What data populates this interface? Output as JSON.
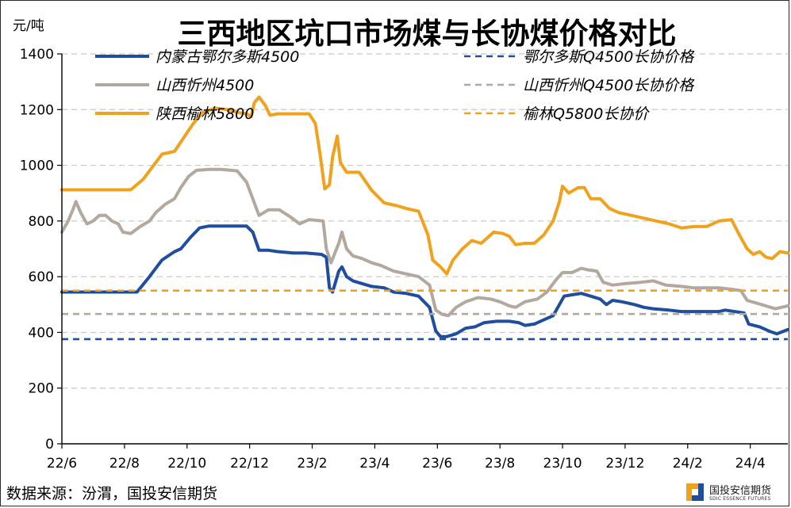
{
  "chart_data": {
    "type": "line",
    "title": "三西地区坑口市场煤与长协煤价格对比",
    "ylabel": "元/吨",
    "ylim": [
      0,
      1400
    ],
    "yticks": [
      0,
      200,
      400,
      600,
      800,
      1000,
      1200,
      1400
    ],
    "xlim": [
      0,
      23.2
    ],
    "xticks": [
      {
        "label": "22/6",
        "value": 0
      },
      {
        "label": "22/8",
        "value": 2
      },
      {
        "label": "22/10",
        "value": 4
      },
      {
        "label": "22/12",
        "value": 6
      },
      {
        "label": "23/2",
        "value": 8
      },
      {
        "label": "23/4",
        "value": 10
      },
      {
        "label": "23/6",
        "value": 12
      },
      {
        "label": "23/8",
        "value": 14
      },
      {
        "label": "23/10",
        "value": 16
      },
      {
        "label": "23/12",
        "value": 18
      },
      {
        "label": "24/2",
        "value": 20
      },
      {
        "label": "24/4",
        "value": 22
      }
    ],
    "grid": "horizontal dashed",
    "legend_position": "top",
    "series": [
      {
        "name": "内蒙古鄂尔多斯4500",
        "color": "#1f4e9c",
        "style": "solid",
        "points": [
          [
            0,
            545
          ],
          [
            1.5,
            545
          ],
          [
            2.4,
            545
          ],
          [
            2.8,
            600
          ],
          [
            3.2,
            660
          ],
          [
            3.6,
            690
          ],
          [
            3.8,
            700
          ],
          [
            4.1,
            740
          ],
          [
            4.4,
            775
          ],
          [
            4.7,
            782
          ],
          [
            5.0,
            782
          ],
          [
            5.5,
            782
          ],
          [
            5.9,
            782
          ],
          [
            6.1,
            760
          ],
          [
            6.3,
            695
          ],
          [
            6.6,
            695
          ],
          [
            6.9,
            690
          ],
          [
            7.4,
            685
          ],
          [
            7.8,
            685
          ],
          [
            8.3,
            680
          ],
          [
            8.45,
            670
          ],
          [
            8.55,
            560
          ],
          [
            8.65,
            545
          ],
          [
            8.85,
            620
          ],
          [
            8.95,
            635
          ],
          [
            9.1,
            600
          ],
          [
            9.3,
            585
          ],
          [
            9.6,
            575
          ],
          [
            9.9,
            565
          ],
          [
            10.3,
            560
          ],
          [
            10.6,
            545
          ],
          [
            11.0,
            540
          ],
          [
            11.4,
            530
          ],
          [
            11.75,
            490
          ],
          [
            11.95,
            405
          ],
          [
            12.1,
            385
          ],
          [
            12.3,
            385
          ],
          [
            12.6,
            395
          ],
          [
            12.9,
            415
          ],
          [
            13.2,
            420
          ],
          [
            13.5,
            435
          ],
          [
            13.9,
            440
          ],
          [
            14.3,
            440
          ],
          [
            14.6,
            435
          ],
          [
            14.8,
            425
          ],
          [
            15.1,
            430
          ],
          [
            15.4,
            445
          ],
          [
            15.7,
            460
          ],
          [
            15.95,
            510
          ],
          [
            16.05,
            530
          ],
          [
            16.3,
            535
          ],
          [
            16.6,
            540
          ],
          [
            16.9,
            530
          ],
          [
            17.2,
            520
          ],
          [
            17.4,
            500
          ],
          [
            17.6,
            515
          ],
          [
            17.9,
            510
          ],
          [
            18.3,
            500
          ],
          [
            18.6,
            490
          ],
          [
            18.9,
            485
          ],
          [
            19.4,
            480
          ],
          [
            19.8,
            475
          ],
          [
            20.2,
            475
          ],
          [
            20.6,
            475
          ],
          [
            21.0,
            475
          ],
          [
            21.2,
            480
          ],
          [
            21.5,
            475
          ],
          [
            21.8,
            470
          ],
          [
            21.95,
            430
          ],
          [
            22.3,
            420
          ],
          [
            22.6,
            405
          ],
          [
            22.85,
            395
          ],
          [
            23.2,
            410
          ]
        ]
      },
      {
        "name": "山西忻州4500",
        "color": "#b3a89d",
        "style": "solid",
        "points": [
          [
            0,
            760
          ],
          [
            0.2,
            800
          ],
          [
            0.35,
            840
          ],
          [
            0.45,
            870
          ],
          [
            0.6,
            830
          ],
          [
            0.8,
            790
          ],
          [
            1.0,
            800
          ],
          [
            1.2,
            820
          ],
          [
            1.4,
            820
          ],
          [
            1.6,
            800
          ],
          [
            1.8,
            790
          ],
          [
            1.95,
            760
          ],
          [
            2.2,
            755
          ],
          [
            2.5,
            780
          ],
          [
            2.8,
            800
          ],
          [
            3.0,
            830
          ],
          [
            3.3,
            860
          ],
          [
            3.6,
            880
          ],
          [
            3.8,
            920
          ],
          [
            4.05,
            960
          ],
          [
            4.3,
            982
          ],
          [
            4.7,
            985
          ],
          [
            5.1,
            985
          ],
          [
            5.6,
            980
          ],
          [
            5.9,
            940
          ],
          [
            6.1,
            880
          ],
          [
            6.3,
            820
          ],
          [
            6.6,
            840
          ],
          [
            6.95,
            840
          ],
          [
            7.3,
            815
          ],
          [
            7.6,
            790
          ],
          [
            7.9,
            805
          ],
          [
            8.35,
            800
          ],
          [
            8.45,
            700
          ],
          [
            8.6,
            650
          ],
          [
            8.85,
            720
          ],
          [
            8.95,
            760
          ],
          [
            9.1,
            700
          ],
          [
            9.3,
            675
          ],
          [
            9.6,
            665
          ],
          [
            9.9,
            650
          ],
          [
            10.2,
            640
          ],
          [
            10.6,
            620
          ],
          [
            11.0,
            610
          ],
          [
            11.4,
            600
          ],
          [
            11.75,
            570
          ],
          [
            11.95,
            480
          ],
          [
            12.15,
            465
          ],
          [
            12.35,
            460
          ],
          [
            12.6,
            490
          ],
          [
            12.9,
            510
          ],
          [
            13.3,
            525
          ],
          [
            13.7,
            520
          ],
          [
            14.0,
            510
          ],
          [
            14.3,
            495
          ],
          [
            14.5,
            490
          ],
          [
            14.8,
            510
          ],
          [
            15.2,
            520
          ],
          [
            15.5,
            545
          ],
          [
            15.8,
            590
          ],
          [
            16.0,
            615
          ],
          [
            16.3,
            615
          ],
          [
            16.6,
            630
          ],
          [
            16.8,
            625
          ],
          [
            17.1,
            620
          ],
          [
            17.3,
            580
          ],
          [
            17.6,
            570
          ],
          [
            18.0,
            575
          ],
          [
            18.5,
            580
          ],
          [
            18.9,
            585
          ],
          [
            19.3,
            570
          ],
          [
            19.8,
            565
          ],
          [
            20.2,
            560
          ],
          [
            20.6,
            560
          ],
          [
            21.0,
            560
          ],
          [
            21.4,
            555
          ],
          [
            21.7,
            550
          ],
          [
            21.9,
            515
          ],
          [
            22.2,
            505
          ],
          [
            22.5,
            495
          ],
          [
            22.8,
            485
          ],
          [
            23.2,
            495
          ]
        ]
      },
      {
        "name": "陕西榆林5800",
        "color": "#f0a21e",
        "style": "solid",
        "points": [
          [
            0,
            912
          ],
          [
            1.0,
            912
          ],
          [
            1.8,
            912
          ],
          [
            2.2,
            912
          ],
          [
            2.6,
            950
          ],
          [
            2.9,
            995
          ],
          [
            3.2,
            1040
          ],
          [
            3.6,
            1050
          ],
          [
            3.9,
            1100
          ],
          [
            4.2,
            1150
          ],
          [
            4.5,
            1190
          ],
          [
            4.9,
            1205
          ],
          [
            5.3,
            1200
          ],
          [
            5.6,
            1190
          ],
          [
            5.9,
            1185
          ],
          [
            6.05,
            1175
          ],
          [
            6.15,
            1225
          ],
          [
            6.3,
            1245
          ],
          [
            6.5,
            1215
          ],
          [
            6.65,
            1180
          ],
          [
            6.9,
            1185
          ],
          [
            7.4,
            1185
          ],
          [
            7.9,
            1185
          ],
          [
            8.1,
            1150
          ],
          [
            8.25,
            1040
          ],
          [
            8.4,
            915
          ],
          [
            8.55,
            930
          ],
          [
            8.65,
            1030
          ],
          [
            8.8,
            1105
          ],
          [
            8.9,
            1010
          ],
          [
            9.1,
            975
          ],
          [
            9.5,
            975
          ],
          [
            9.9,
            910
          ],
          [
            10.3,
            865
          ],
          [
            10.7,
            855
          ],
          [
            11.0,
            845
          ],
          [
            11.4,
            835
          ],
          [
            11.7,
            750
          ],
          [
            11.85,
            660
          ],
          [
            12.1,
            635
          ],
          [
            12.3,
            610
          ],
          [
            12.5,
            660
          ],
          [
            12.8,
            700
          ],
          [
            13.1,
            730
          ],
          [
            13.4,
            720
          ],
          [
            13.8,
            760
          ],
          [
            14.1,
            755
          ],
          [
            14.3,
            745
          ],
          [
            14.5,
            715
          ],
          [
            14.8,
            720
          ],
          [
            15.1,
            720
          ],
          [
            15.4,
            750
          ],
          [
            15.7,
            800
          ],
          [
            15.9,
            870
          ],
          [
            16.0,
            925
          ],
          [
            16.2,
            900
          ],
          [
            16.5,
            920
          ],
          [
            16.7,
            920
          ],
          [
            16.9,
            880
          ],
          [
            17.2,
            880
          ],
          [
            17.5,
            845
          ],
          [
            17.8,
            830
          ],
          [
            18.2,
            820
          ],
          [
            18.6,
            810
          ],
          [
            19.0,
            800
          ],
          [
            19.4,
            790
          ],
          [
            19.8,
            775
          ],
          [
            20.2,
            780
          ],
          [
            20.6,
            780
          ],
          [
            21.0,
            800
          ],
          [
            21.4,
            805
          ],
          [
            21.65,
            750
          ],
          [
            21.9,
            700
          ],
          [
            22.1,
            680
          ],
          [
            22.3,
            690
          ],
          [
            22.5,
            670
          ],
          [
            22.7,
            665
          ],
          [
            22.95,
            690
          ],
          [
            23.2,
            685
          ]
        ]
      },
      {
        "name": "鄂尔多斯Q4500长协价格",
        "color": "#1f4e9c",
        "style": "dashed",
        "points": [
          [
            0,
            376
          ],
          [
            23.2,
            376
          ]
        ]
      },
      {
        "name": "山西忻州Q4500长协价格",
        "color": "#b3a89d",
        "style": "dashed",
        "points": [
          [
            0,
            466
          ],
          [
            23.2,
            466
          ]
        ]
      },
      {
        "name": "榆林Q5800长协价",
        "color": "#f0a21e",
        "style": "dashed",
        "points": [
          [
            0,
            550
          ],
          [
            23.2,
            550
          ]
        ]
      }
    ]
  },
  "footer": {
    "source": "数据来源：汾渭，国投安信期货",
    "logo_cn": "国投安信期货",
    "logo_en": "SDIC ESSENCE FUTURES"
  }
}
